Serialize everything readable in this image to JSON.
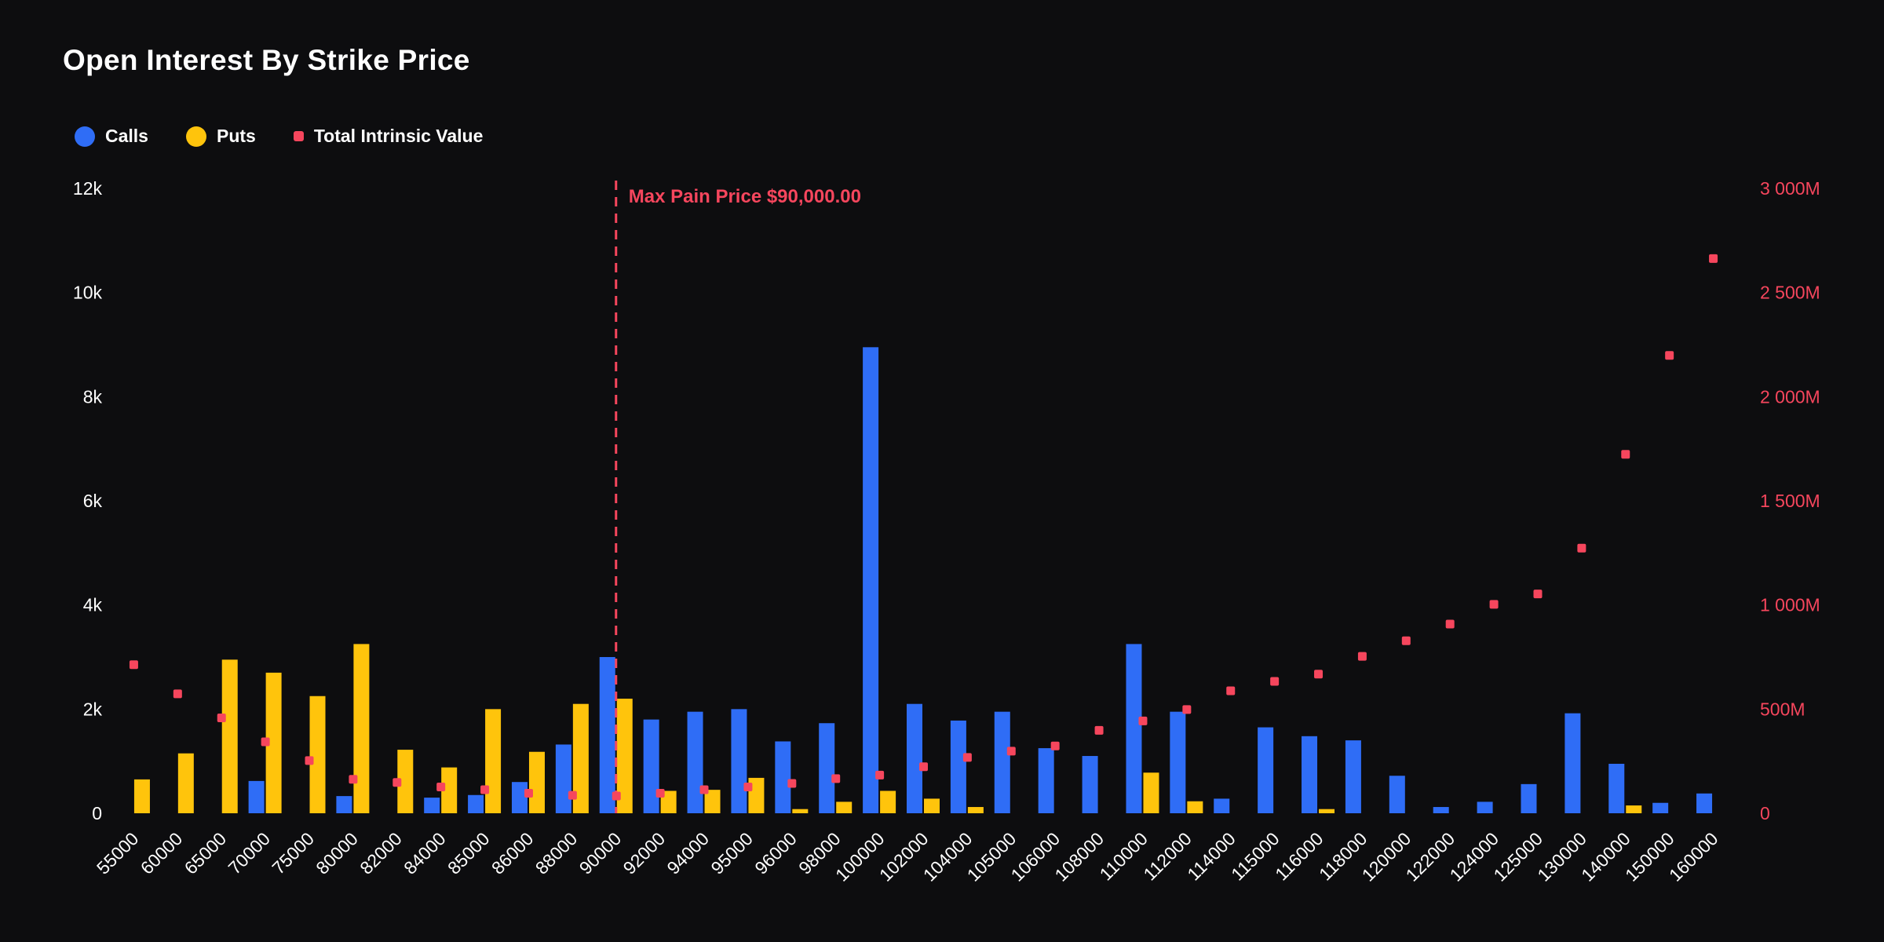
{
  "chart": {
    "title": "Open Interest By Strike Price"
  },
  "legend": {
    "items": [
      {
        "label": "Calls",
        "color": "#2F6DF6",
        "shape": "circle"
      },
      {
        "label": "Puts",
        "color": "#FFC40C",
        "shape": "circle"
      },
      {
        "label": "Total Intrinsic Value",
        "color": "#F6465D",
        "shape": "square"
      }
    ]
  },
  "chart_data": {
    "type": "bar",
    "title": "Open Interest By Strike Price",
    "background": "#0d0d0f",
    "grid": false,
    "legend_position": "top-left",
    "categories": [
      "55000",
      "60000",
      "65000",
      "70000",
      "75000",
      "80000",
      "82000",
      "84000",
      "85000",
      "86000",
      "88000",
      "90000",
      "92000",
      "94000",
      "95000",
      "96000",
      "98000",
      "100000",
      "102000",
      "104000",
      "105000",
      "106000",
      "108000",
      "110000",
      "112000",
      "114000",
      "115000",
      "116000",
      "118000",
      "120000",
      "122000",
      "124000",
      "125000",
      "130000",
      "140000",
      "150000",
      "160000"
    ],
    "series": [
      {
        "name": "Calls",
        "type": "bar",
        "axis": "left",
        "color": "#2F6DF6",
        "values": [
          0,
          0,
          0,
          620,
          0,
          330,
          0,
          300,
          350,
          600,
          1320,
          3000,
          1800,
          1950,
          2000,
          1380,
          1730,
          8950,
          2100,
          1780,
          1950,
          1250,
          1100,
          3250,
          1950,
          280,
          1650,
          1480,
          1400,
          720,
          120,
          220,
          560,
          1920,
          950,
          200,
          380
        ]
      },
      {
        "name": "Puts",
        "type": "bar",
        "axis": "left",
        "color": "#FFC40C",
        "values": [
          650,
          1150,
          2950,
          2700,
          2250,
          3250,
          1220,
          880,
          2000,
          1180,
          2100,
          2200,
          430,
          450,
          680,
          80,
          220,
          430,
          280,
          120,
          0,
          0,
          0,
          780,
          230,
          0,
          0,
          80,
          0,
          0,
          0,
          0,
          0,
          0,
          150,
          0,
          0
        ]
      },
      {
        "name": "Total Intrinsic Value",
        "type": "scatter",
        "axis": "right",
        "color": "#F6465D",
        "unit": "M",
        "values": [
          715,
          575,
          460,
          345,
          255,
          165,
          150,
          128,
          115,
          98,
          88,
          85,
          98,
          115,
          128,
          145,
          168,
          185,
          225,
          270,
          300,
          325,
          400,
          445,
          500,
          590,
          635,
          670,
          755,
          830,
          910,
          1005,
          1055,
          1275,
          1725,
          2200,
          2665
        ]
      }
    ],
    "left_axis": {
      "min": 0,
      "max": 12000,
      "color": "#FFFFFF",
      "ticks": [
        "0",
        "2k",
        "4k",
        "6k",
        "8k",
        "10k",
        "12k"
      ]
    },
    "right_axis": {
      "min": 0,
      "max": 3000,
      "color": "#F6465D",
      "ticks": [
        "0",
        "500M",
        "1 000M",
        "1 500M",
        "2 000M",
        "2 500M",
        "3 000M"
      ]
    },
    "annotation": {
      "label": "Max Pain Price $90,000.00",
      "x": "90000",
      "color": "#F6465D"
    }
  }
}
